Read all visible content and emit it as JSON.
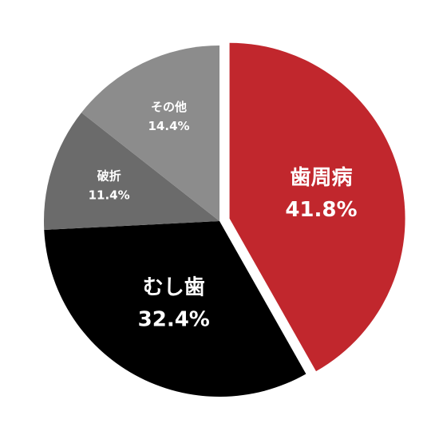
{
  "chart_data": {
    "type": "pie",
    "categories": [
      "歯周病",
      "むし歯",
      "破折",
      "その他"
    ],
    "values": [
      41.8,
      32.4,
      11.4,
      14.4
    ],
    "value_labels": [
      "41.8%",
      "32.4%",
      "11.4%",
      "14.4%"
    ],
    "colors": [
      "#c1272d",
      "#000000",
      "#6b6b6b",
      "#8c8c8c"
    ],
    "exploded": [
      true,
      false,
      false,
      false
    ]
  }
}
